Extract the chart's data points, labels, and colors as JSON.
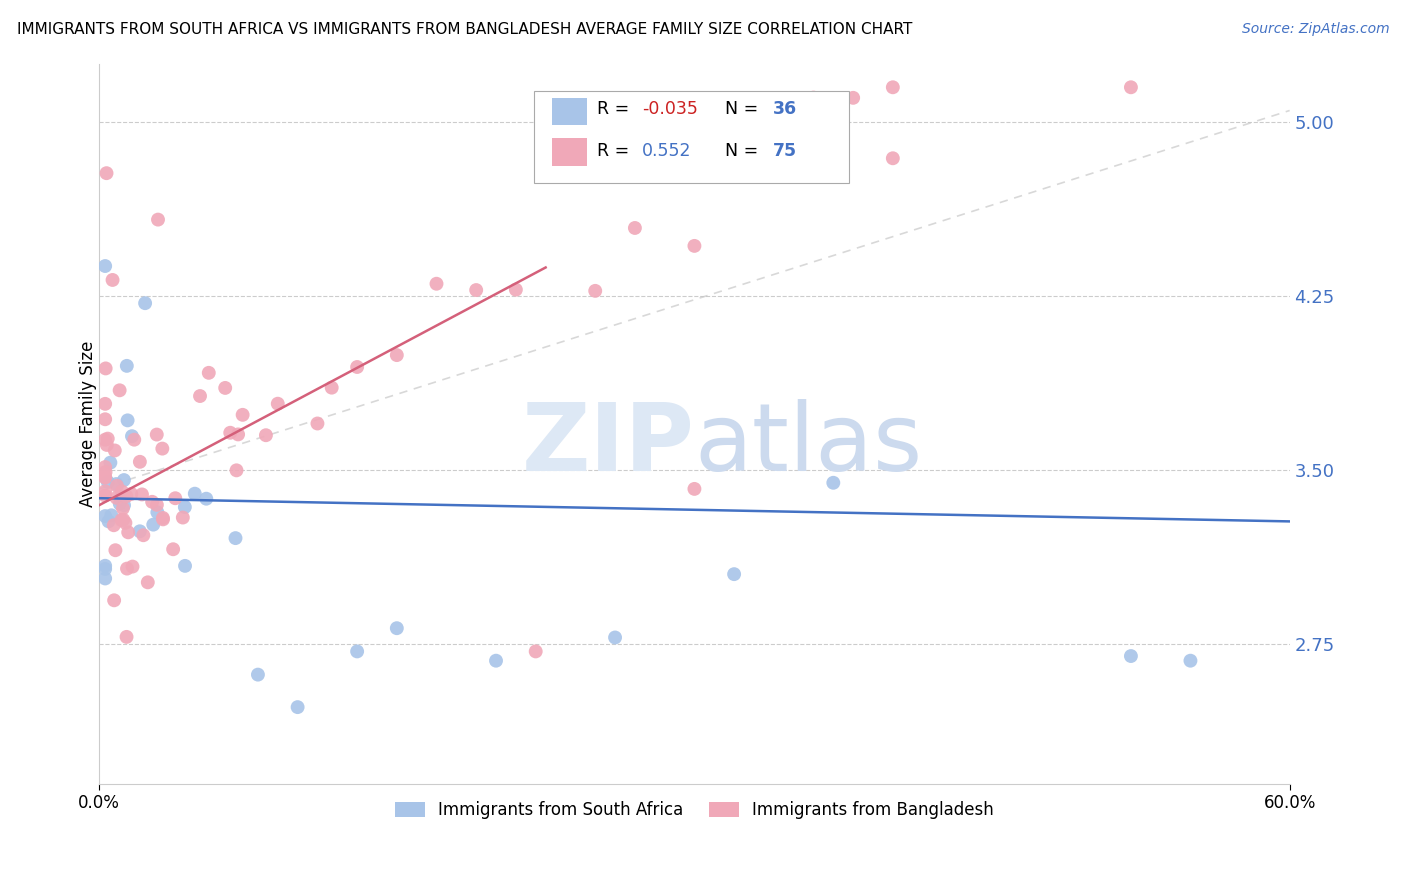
{
  "title": "IMMIGRANTS FROM SOUTH AFRICA VS IMMIGRANTS FROM BANGLADESH AVERAGE FAMILY SIZE CORRELATION CHART",
  "source": "Source: ZipAtlas.com",
  "ylabel": "Average Family Size",
  "ytick_values": [
    2.75,
    3.5,
    4.25,
    5.0
  ],
  "ytick_labels": [
    "2.75",
    "3.50",
    "4.25",
    "5.00"
  ],
  "xlim": [
    0.0,
    0.6
  ],
  "ylim": [
    2.15,
    5.25
  ],
  "xtick_values": [
    0.0,
    0.6
  ],
  "xtick_labels": [
    "0.0%",
    "60.0%"
  ],
  "color_blue": "#a8c4e8",
  "color_pink": "#f0a8b8",
  "line_blue": "#4472c4",
  "line_pink": "#d4607a",
  "line_dash_color": "#c8c8c8",
  "series1_label": "Immigrants from South Africa",
  "series2_label": "Immigrants from Bangladesh",
  "legend_r1_prefix": "R = ",
  "legend_r1_val": "-0.035",
  "legend_n1_prefix": "N = ",
  "legend_n1_val": "36",
  "legend_r2_prefix": "R =  ",
  "legend_r2_val": "0.552",
  "legend_n2_prefix": "N = ",
  "legend_n2_val": "75",
  "ytick_color": "#4472c4",
  "source_color": "#4472c4"
}
